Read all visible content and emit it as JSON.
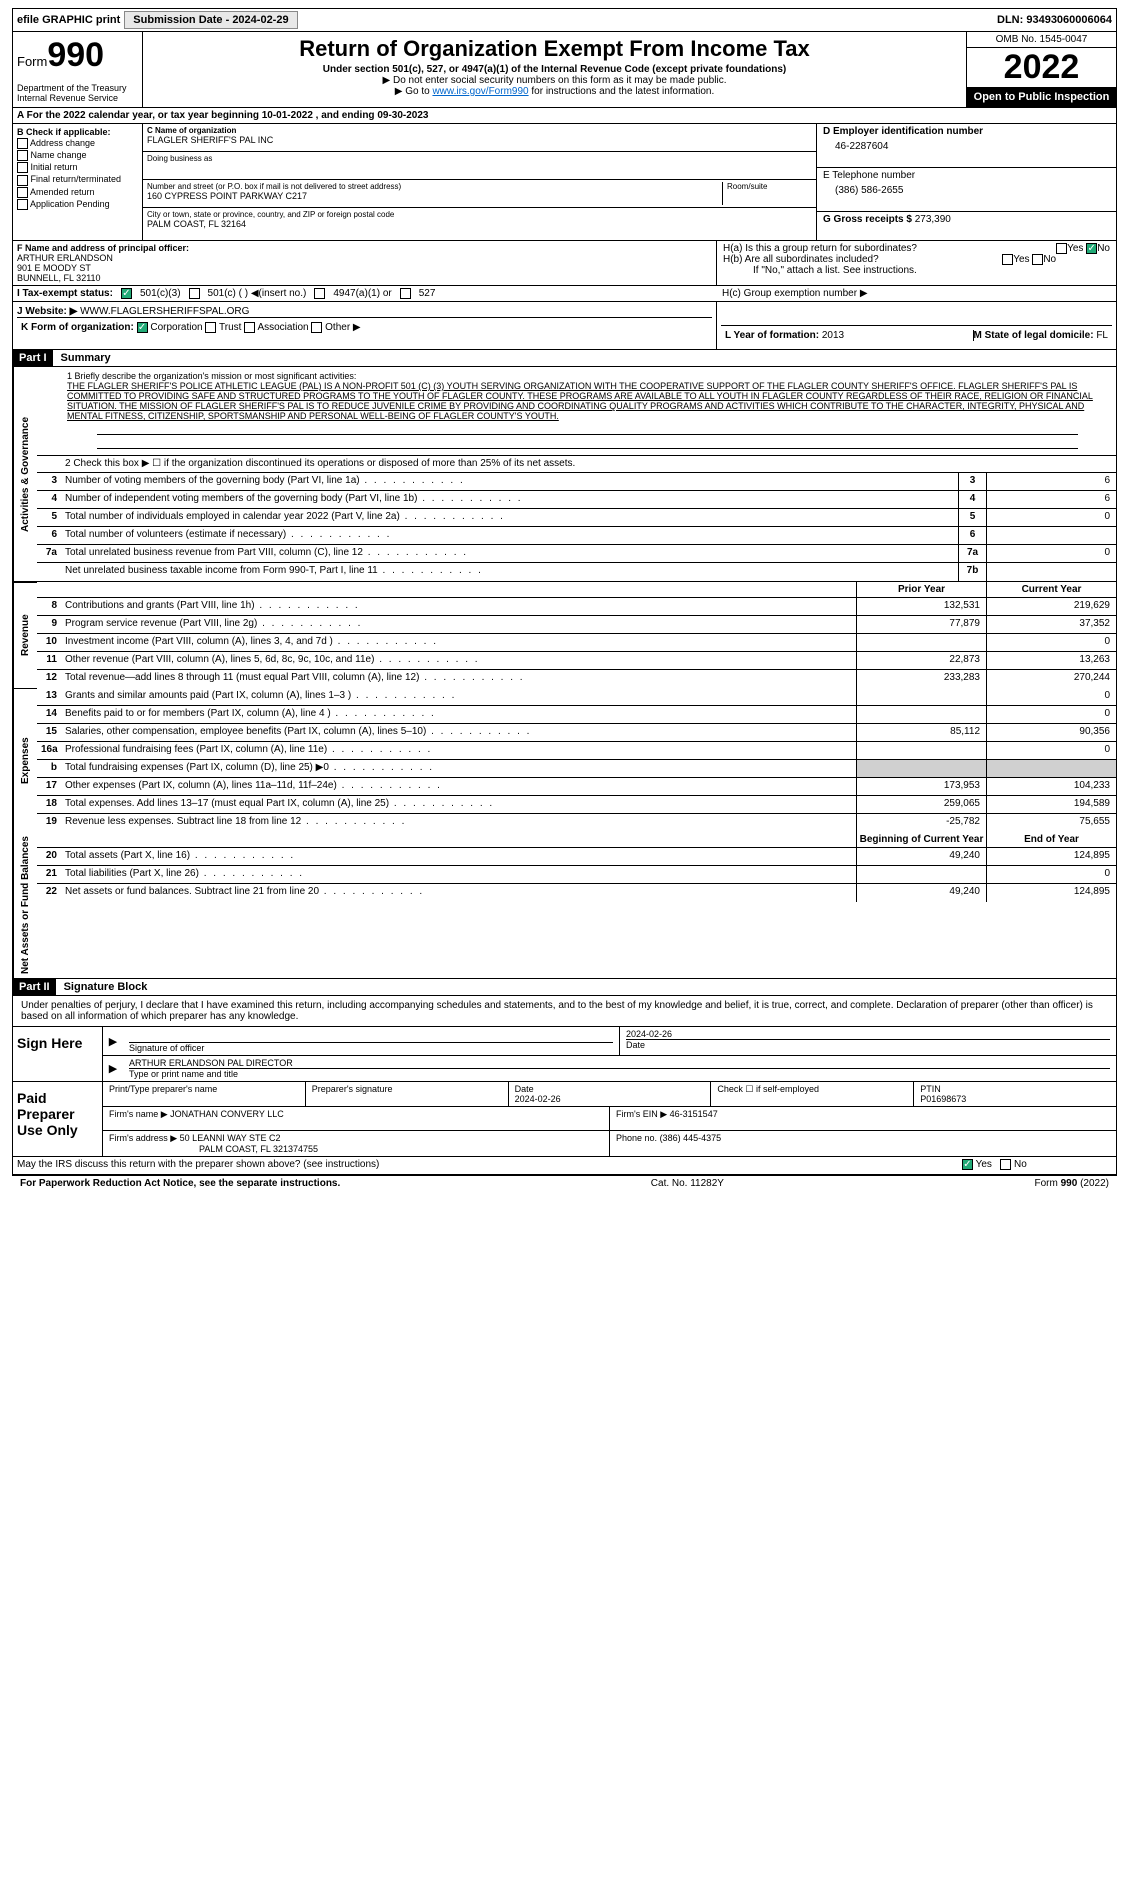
{
  "topbar": {
    "efile": "efile GRAPHIC print",
    "submission_label": "Submission Date - 2024-02-29",
    "dln": "DLN: 93493060006064"
  },
  "header": {
    "form_label": "Form",
    "form_num": "990",
    "dept": "Department of the Treasury",
    "irs": "Internal Revenue Service",
    "title": "Return of Organization Exempt From Income Tax",
    "sub1": "Under section 501(c), 527, or 4947(a)(1) of the Internal Revenue Code (except private foundations)",
    "sub2": "▶ Do not enter social security numbers on this form as it may be made public.",
    "sub3_pre": "▶ Go to ",
    "sub3_link": "www.irs.gov/Form990",
    "sub3_post": " for instructions and the latest information.",
    "omb": "OMB No. 1545-0047",
    "year": "2022",
    "inspection": "Open to Public Inspection"
  },
  "line_a": "A For the 2022 calendar year, or tax year beginning 10-01-2022    , and ending 09-30-2023",
  "block_b": {
    "label": "B Check if applicable:",
    "items": [
      "Address change",
      "Name change",
      "Initial return",
      "Final return/terminated",
      "Amended return",
      "Application Pending"
    ]
  },
  "block_c": {
    "name_label": "C Name of organization",
    "name": "FLAGLER SHERIFF'S PAL INC",
    "dba_label": "Doing business as",
    "addr_label": "Number and street (or P.O. box if mail is not delivered to street address)",
    "addr": "160 CYPRESS POINT PARKWAY C217",
    "room_label": "Room/suite",
    "city_label": "City or town, state or province, country, and ZIP or foreign postal code",
    "city": "PALM COAST, FL  32164"
  },
  "block_d": {
    "label": "D Employer identification number",
    "value": "46-2287604"
  },
  "block_e": {
    "label": "E Telephone number",
    "value": "(386) 586-2655"
  },
  "block_g": {
    "label": "G Gross receipts $",
    "value": "273,390"
  },
  "block_f": {
    "label": "F  Name and address of principal officer:",
    "name": "ARTHUR ERLANDSON",
    "addr1": "901 E MOODY ST",
    "addr2": "BUNNELL, FL  32110"
  },
  "block_h": {
    "ha": "H(a)  Is this a group return for subordinates?",
    "hb": "H(b)  Are all subordinates included?",
    "hb_note": "If \"No,\" attach a list. See instructions.",
    "hc": "H(c)  Group exemption number ▶"
  },
  "block_i": {
    "label": "I  Tax-exempt status:",
    "opts": [
      "501(c)(3)",
      "501(c) (  ) ◀(insert no.)",
      "4947(a)(1) or",
      "527"
    ]
  },
  "block_j": {
    "label": "J  Website: ▶",
    "value": "WWW.FLAGLERSHERIFFSPAL.ORG"
  },
  "block_k": {
    "label": "K Form of organization:",
    "opts": [
      "Corporation",
      "Trust",
      "Association",
      "Other ▶"
    ]
  },
  "block_l": {
    "label": "L Year of formation:",
    "value": "2013"
  },
  "block_m": {
    "label": "M State of legal domicile:",
    "value": "FL"
  },
  "part1": {
    "num": "Part I",
    "title": "Summary"
  },
  "summary": {
    "q1_label": "1   Briefly describe the organization's mission or most significant activities:",
    "mission": "THE FLAGLER SHERIFF'S POLICE ATHLETIC LEAGUE (PAL) IS A NON-PROFIT 501 (C) (3) YOUTH SERVING ORGANIZATION WITH THE COOPERATIVE SUPPORT OF THE FLAGLER COUNTY SHERIFF'S OFFICE. FLAGLER SHERIFF'S PAL IS COMMITTED TO PROVIDING SAFE AND STRUCTURED PROGRAMS TO THE YOUTH OF FLAGLER COUNTY. THESE PROGRAMS ARE AVAILABLE TO ALL YOUTH IN FLAGLER COUNTY REGARDLESS OF THEIR RACE, RELIGION OR FINANCIAL SITUATION. THE MISSION OF FLAGLER SHERIFF'S PAL IS TO REDUCE JUVENILE CRIME BY PROVIDING AND COORDINATING QUALITY PROGRAMS AND ACTIVITIES WHICH CONTRIBUTE TO THE CHARACTER, INTEGRITY, PHYSICAL AND MENTAL FITNESS, CITIZENSHIP, SPORTSMANSHIP AND PERSONAL WELL-BEING OF FLAGLER COUNTY'S YOUTH.",
    "q2": "2   Check this box ▶ ☐ if the organization discontinued its operations or disposed of more than 25% of its net assets.",
    "rows_gov": [
      {
        "n": "3",
        "t": "Number of voting members of the governing body (Part VI, line 1a)",
        "box": "3",
        "v": "6"
      },
      {
        "n": "4",
        "t": "Number of independent voting members of the governing body (Part VI, line 1b)",
        "box": "4",
        "v": "6"
      },
      {
        "n": "5",
        "t": "Total number of individuals employed in calendar year 2022 (Part V, line 2a)",
        "box": "5",
        "v": "0"
      },
      {
        "n": "6",
        "t": "Total number of volunteers (estimate if necessary)",
        "box": "6",
        "v": ""
      },
      {
        "n": "7a",
        "t": "Total unrelated business revenue from Part VIII, column (C), line 12",
        "box": "7a",
        "v": "0"
      },
      {
        "n": "",
        "t": "Net unrelated business taxable income from Form 990-T, Part I, line 11",
        "box": "7b",
        "v": ""
      }
    ],
    "col_prior": "Prior Year",
    "col_current": "Current Year",
    "rows_rev": [
      {
        "n": "8",
        "t": "Contributions and grants (Part VIII, line 1h)",
        "p": "132,531",
        "c": "219,629"
      },
      {
        "n": "9",
        "t": "Program service revenue (Part VIII, line 2g)",
        "p": "77,879",
        "c": "37,352"
      },
      {
        "n": "10",
        "t": "Investment income (Part VIII, column (A), lines 3, 4, and 7d )",
        "p": "",
        "c": "0"
      },
      {
        "n": "11",
        "t": "Other revenue (Part VIII, column (A), lines 5, 6d, 8c, 9c, 10c, and 11e)",
        "p": "22,873",
        "c": "13,263"
      },
      {
        "n": "12",
        "t": "Total revenue—add lines 8 through 11 (must equal Part VIII, column (A), line 12)",
        "p": "233,283",
        "c": "270,244"
      }
    ],
    "rows_exp": [
      {
        "n": "13",
        "t": "Grants and similar amounts paid (Part IX, column (A), lines 1–3 )",
        "p": "",
        "c": "0"
      },
      {
        "n": "14",
        "t": "Benefits paid to or for members (Part IX, column (A), line 4 )",
        "p": "",
        "c": "0"
      },
      {
        "n": "15",
        "t": "Salaries, other compensation, employee benefits (Part IX, column (A), lines 5–10)",
        "p": "85,112",
        "c": "90,356"
      },
      {
        "n": "16a",
        "t": "Professional fundraising fees (Part IX, column (A), line 11e)",
        "p": "",
        "c": "0"
      },
      {
        "n": "b",
        "t": "Total fundraising expenses (Part IX, column (D), line 25) ▶0",
        "p": "shade",
        "c": "shade"
      },
      {
        "n": "17",
        "t": "Other expenses (Part IX, column (A), lines 11a–11d, 11f–24e)",
        "p": "173,953",
        "c": "104,233"
      },
      {
        "n": "18",
        "t": "Total expenses. Add lines 13–17 (must equal Part IX, column (A), line 25)",
        "p": "259,065",
        "c": "194,589"
      },
      {
        "n": "19",
        "t": "Revenue less expenses. Subtract line 18 from line 12",
        "p": "-25,782",
        "c": "75,655"
      }
    ],
    "col_begin": "Beginning of Current Year",
    "col_end": "End of Year",
    "rows_net": [
      {
        "n": "20",
        "t": "Total assets (Part X, line 16)",
        "p": "49,240",
        "c": "124,895"
      },
      {
        "n": "21",
        "t": "Total liabilities (Part X, line 26)",
        "p": "",
        "c": "0"
      },
      {
        "n": "22",
        "t": "Net assets or fund balances. Subtract line 21 from line 20",
        "p": "49,240",
        "c": "124,895"
      }
    ],
    "vert_gov": "Activities & Governance",
    "vert_rev": "Revenue",
    "vert_exp": "Expenses",
    "vert_net": "Net Assets or Fund Balances"
  },
  "part2": {
    "num": "Part II",
    "title": "Signature Block"
  },
  "sig": {
    "intro": "Under penalties of perjury, I declare that I have examined this return, including accompanying schedules and statements, and to the best of my knowledge and belief, it is true, correct, and complete. Declaration of preparer (other than officer) is based on all information of which preparer has any knowledge.",
    "sign_here": "Sign Here",
    "sig_officer": "Signature of officer",
    "date_label": "Date",
    "date": "2024-02-26",
    "officer_name": "ARTHUR ERLANDSON  PAL DIRECTOR",
    "officer_sub": "Type or print name and title",
    "paid": "Paid Preparer Use Only",
    "prep_name_label": "Print/Type preparer's name",
    "prep_sig_label": "Preparer's signature",
    "prep_date_label": "Date",
    "prep_date": "2024-02-26",
    "self_emp": "Check ☐ if self-employed",
    "ptin_label": "PTIN",
    "ptin": "P01698673",
    "firm_name_label": "Firm's name    ▶",
    "firm_name": "JONATHAN CONVERY LLC",
    "firm_ein_label": "Firm's EIN ▶",
    "firm_ein": "46-3151547",
    "firm_addr_label": "Firm's address ▶",
    "firm_addr1": "50 LEANNI WAY STE C2",
    "firm_addr2": "PALM COAST, FL  321374755",
    "phone_label": "Phone no.",
    "phone": "(386) 445-4375",
    "discuss": "May the IRS discuss this return with the preparer shown above? (see instructions)"
  },
  "footer": {
    "left": "For Paperwork Reduction Act Notice, see the separate instructions.",
    "mid": "Cat. No. 11282Y",
    "right": "Form 990 (2022)"
  },
  "colors": {
    "link": "#0066cc",
    "black": "#000000",
    "shade": "#d0d0d0",
    "check_green": "#22aa77"
  }
}
